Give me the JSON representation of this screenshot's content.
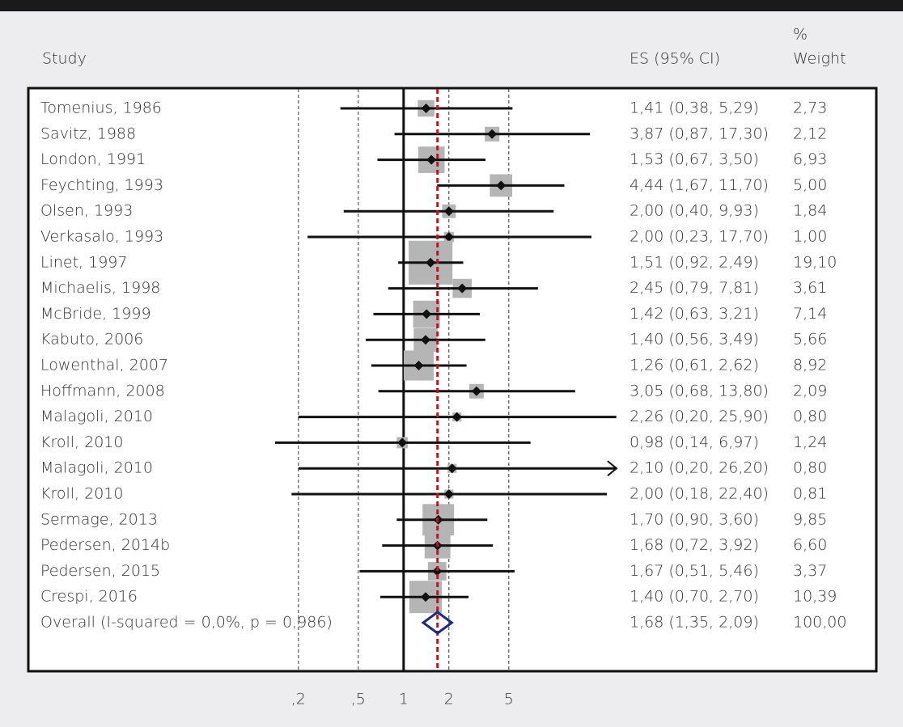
{
  "chart_data": {
    "type": "forest",
    "headers": {
      "study": "Study",
      "es": "ES (95% CI)",
      "weight_top": "%",
      "weight": "Weight"
    },
    "studies": [
      "Tomenius, 1986",
      "Savitz, 1988",
      "London, 1991",
      "Feychting, 1993",
      "Olsen, 1993",
      "Verkasalo, 1993",
      "Linet, 1997",
      "Michaelis, 1998",
      "McBride, 1999",
      "Kabuto, 2006",
      "Lowenthal, 2007",
      "Hoffmann, 2008",
      "Malagoli, 2010",
      "Kroll, 2010",
      "Malagoli, 2010",
      "Kroll, 2010",
      "Sermage, 2013",
      "Pedersen, 2014b",
      "Pedersen, 2015",
      "Crespi, 2016"
    ],
    "es": [
      1.41,
      3.87,
      1.53,
      4.44,
      2.0,
      2.0,
      1.51,
      2.45,
      1.42,
      1.4,
      1.26,
      3.05,
      2.26,
      0.98,
      2.1,
      2.0,
      1.7,
      1.68,
      1.67,
      1.4
    ],
    "lo": [
      0.38,
      0.87,
      0.67,
      1.67,
      0.4,
      0.23,
      0.92,
      0.79,
      0.63,
      0.56,
      0.61,
      0.68,
      0.2,
      0.14,
      0.2,
      0.18,
      0.9,
      0.72,
      0.51,
      0.7
    ],
    "hi": [
      5.29,
      17.3,
      3.5,
      11.7,
      9.93,
      17.7,
      2.49,
      7.81,
      3.21,
      3.49,
      2.62,
      13.8,
      25.9,
      6.97,
      26.2,
      22.4,
      3.6,
      3.92,
      5.46,
      2.7
    ],
    "es_labels": [
      "1,41 (0,38, 5,29)",
      "3,87 (0,87, 17,30)",
      "1,53 (0,67, 3,50)",
      "4,44 (1,67, 11,70)",
      "2,00 (0,40, 9,93)",
      "2,00 (0,23, 17,70)",
      "1,51 (0,92, 2,49)",
      "2,45 (0,79, 7,81)",
      "1,42 (0,63, 3,21)",
      "1,40 (0,56, 3,49)",
      "1,26 (0,61, 2,62)",
      "3,05 (0,68, 13,80)",
      "2,26 (0,20, 25,90)",
      "0,98 (0,14, 6,97)",
      "2,10 (0,20, 26,20)",
      "2,00 (0,18, 22,40)",
      "1,70 (0,90, 3,60)",
      "1,68 (0,72, 3,92)",
      "1,67 (0,51, 5,46)",
      "1,40 (0,70, 2,70)"
    ],
    "weights": [
      2.73,
      2.12,
      6.93,
      5.0,
      1.84,
      1.0,
      19.1,
      3.61,
      7.14,
      5.66,
      8.92,
      2.09,
      0.8,
      1.24,
      0.8,
      0.81,
      9.85,
      6.6,
      3.37,
      10.39
    ],
    "weight_labels": [
      "2,73",
      "2,12",
      "6,93",
      "5,00",
      "1,84",
      "1,00",
      "19,10",
      "3,61",
      "7,14",
      "5,66",
      "8,92",
      "2,09",
      "0,80",
      "1,24",
      "0,80",
      "0,81",
      "9,85",
      "6,60",
      "3,37",
      "10,39"
    ],
    "overall": {
      "name": "Overall (I-squared = 0,0%, p = 0,986)",
      "es": 1.68,
      "lo": 1.35,
      "hi": 2.09,
      "label": "1,68 (1,35, 2,09)",
      "weight": 100,
      "weight_label": "100,00"
    },
    "xlim": [
      0.14,
      26
    ],
    "xticks": [
      {
        "value": 0.2,
        "label": ",2"
      },
      {
        "value": 0.5,
        "label": ",5"
      },
      1,
      2,
      5
    ],
    "log_x": true,
    "grid": true,
    "null_line": 1,
    "box_color": "#b5b5b5",
    "point_color": "#111111",
    "overall_color": "#1f2a7a",
    "overall_line_color": "#c0141c"
  }
}
